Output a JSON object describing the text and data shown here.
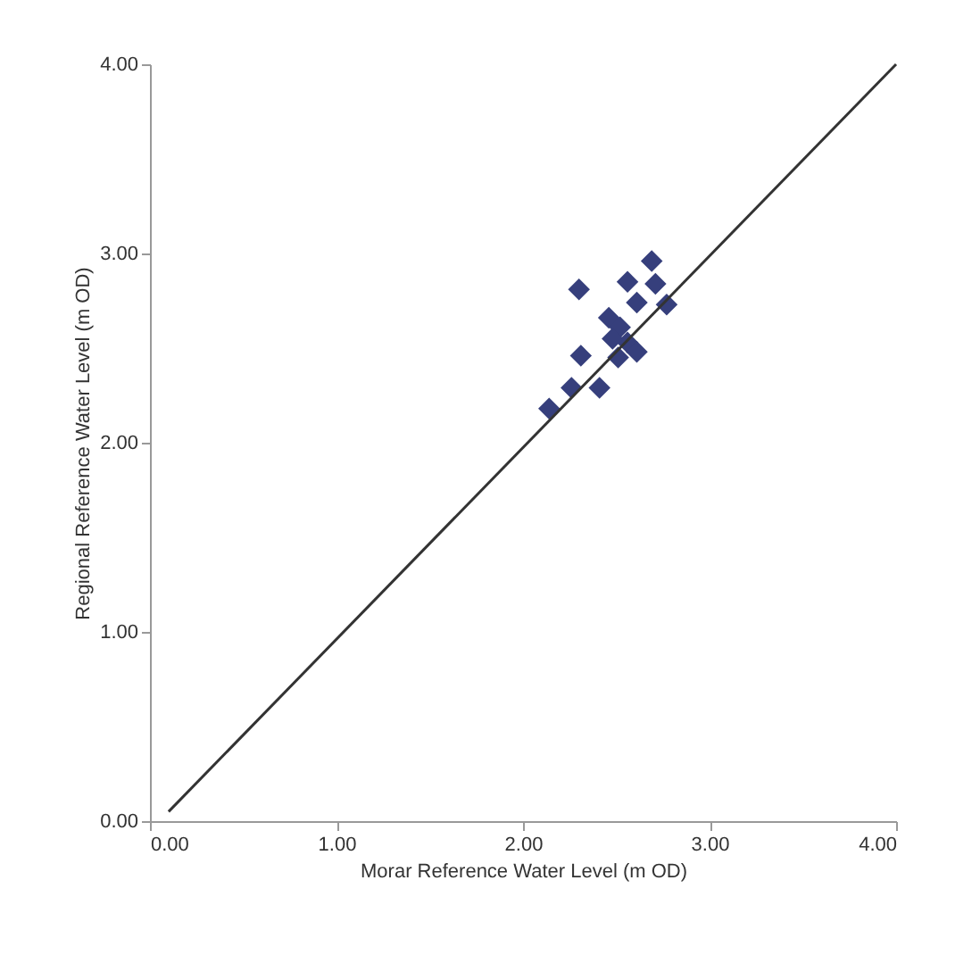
{
  "chart_data": {
    "type": "scatter",
    "xlabel": "Morar Reference Water Level (m OD)",
    "ylabel": "Regional Reference Water Level (m OD)",
    "xlim": [
      0,
      4
    ],
    "ylim": [
      0,
      4
    ],
    "xticks": [
      {
        "value": 0,
        "label": "0.00"
      },
      {
        "value": 1,
        "label": "1.00"
      },
      {
        "value": 2,
        "label": "2.00"
      },
      {
        "value": 3,
        "label": "3.00"
      },
      {
        "value": 4,
        "label": "4.00"
      }
    ],
    "yticks": [
      {
        "value": 0,
        "label": "0.00"
      },
      {
        "value": 1,
        "label": "1.00"
      },
      {
        "value": 2,
        "label": "2.00"
      },
      {
        "value": 3,
        "label": "3.00"
      },
      {
        "value": 4,
        "label": "4.00"
      }
    ],
    "grid": false,
    "series": [
      {
        "marker": "diamond",
        "color": "#363f7c",
        "x": [
          2.14,
          2.26,
          2.41,
          2.31,
          2.3,
          2.46,
          2.51,
          2.56,
          2.61,
          2.56,
          2.52,
          2.61,
          2.69,
          2.71,
          2.77,
          2.48
        ],
        "values": [
          2.18,
          2.29,
          2.29,
          2.46,
          2.81,
          2.66,
          2.45,
          2.53,
          2.48,
          2.85,
          2.61,
          2.74,
          2.96,
          2.84,
          2.73,
          2.55
        ]
      },
      {
        "type": "line",
        "color": "#333333",
        "x": [
          0.1,
          4
        ],
        "values": [
          0.05,
          4
        ]
      }
    ]
  }
}
